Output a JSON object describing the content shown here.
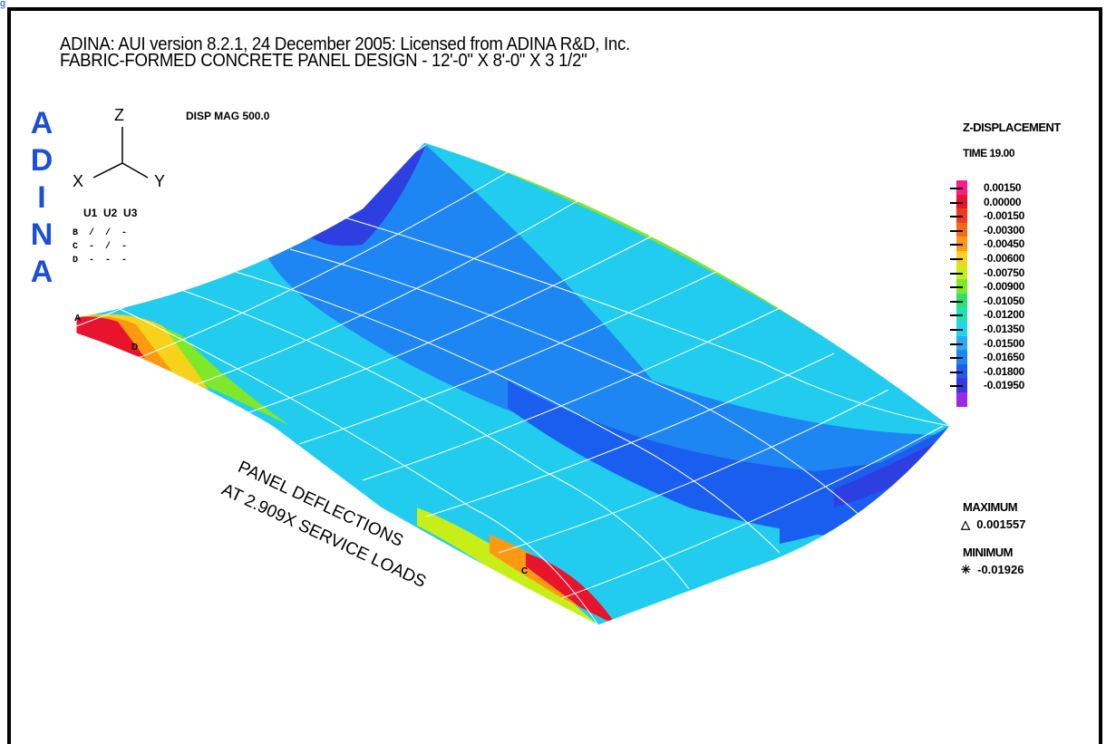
{
  "corner_link": "g",
  "header": {
    "line1": "ADINA: AUI version 8.2.1, 24 December 2005: Licensed from ADINA R&D, Inc.",
    "line2": "FABRIC-FORMED CONCRETE PANEL DESIGN - 12'-0\" X 8'-0\" X 3 1/2\""
  },
  "disp_mag": "DISP MAG 500.0",
  "logo_letters": [
    "A",
    "D",
    "I",
    "N",
    "A"
  ],
  "axes": {
    "z": "Z",
    "x": "X",
    "y": "Y"
  },
  "bc_table": {
    "header": [
      "U1",
      "U2",
      "U3"
    ],
    "rows": [
      {
        "label": "B",
        "marks": "/  /  -"
      },
      {
        "label": "C",
        "marks": "-  /  -"
      },
      {
        "label": "D",
        "marks": "-  -  -"
      }
    ]
  },
  "node_labels": {
    "a": "A",
    "d": "D",
    "c": "C"
  },
  "panel_caption": {
    "line1": "PANEL DEFLECTIONS",
    "line2": "AT 2.909X SERVICE LOADS"
  },
  "legend": {
    "title": "Z-DISPLACEMENT",
    "time": "TIME 19.00",
    "values": [
      "0.00150",
      "0.00000",
      "-0.00150",
      "-0.00300",
      "-0.00450",
      "-0.00600",
      "-0.00750",
      "-0.00900",
      "-0.01050",
      "-0.01200",
      "-0.01350",
      "-0.01500",
      "-0.01650",
      "-0.01800",
      "-0.01950"
    ],
    "colors": [
      "#ff1a8c",
      "#e8142e",
      "#f23a1c",
      "#f76a14",
      "#fb9a12",
      "#f6d21a",
      "#c8ee1a",
      "#7ee82a",
      "#2ee070",
      "#22e0b8",
      "#22d4ee",
      "#26aef4",
      "#1e86f2",
      "#1a5ef0",
      "#3a36e6",
      "#9a2ae8"
    ],
    "maximum_label": "MAXIMUM",
    "maximum_value": "△  0.001557",
    "minimum_label": "MINIMUM",
    "minimum_value": "✳  -0.01926"
  }
}
